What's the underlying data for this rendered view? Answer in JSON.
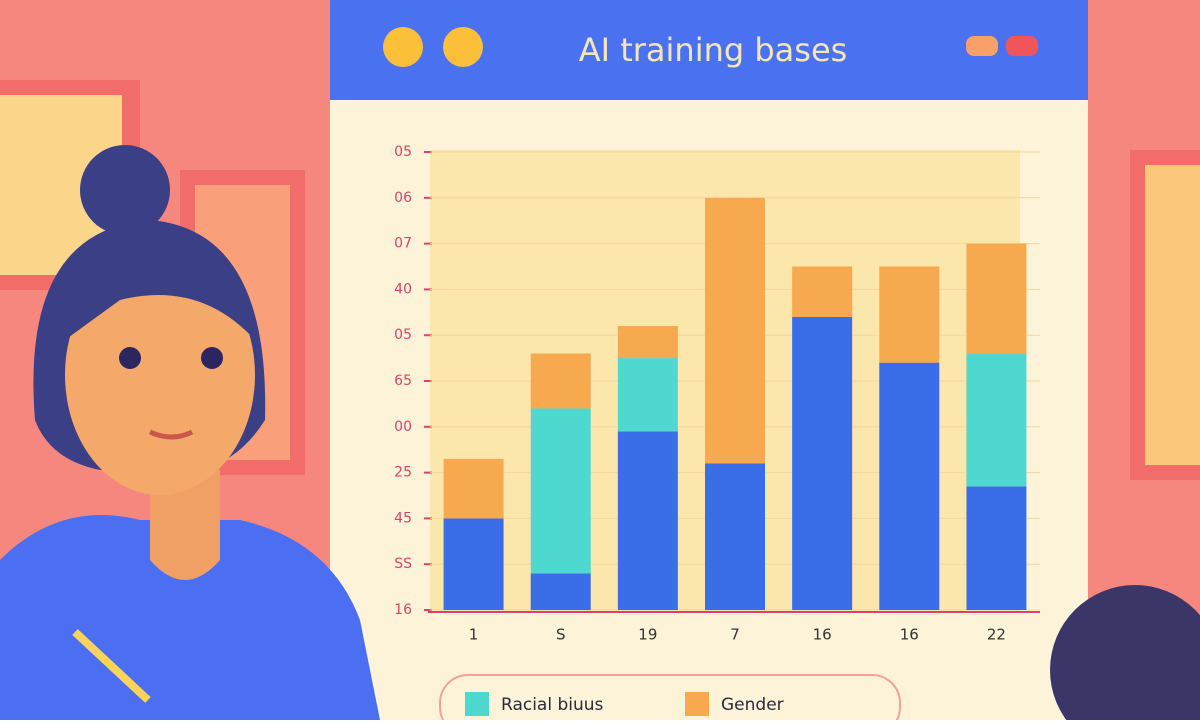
{
  "chart_data": {
    "type": "bar",
    "stacked": true,
    "title": "AI training bases",
    "categories": [
      "1",
      "S",
      "19",
      "7",
      "16",
      "16",
      "22"
    ],
    "series": [
      {
        "color": "#3a6ee8",
        "values": [
          2.0,
          0.8,
          3.9,
          3.2,
          6.4,
          5.4,
          2.7
        ]
      },
      {
        "name": "Racial biuus",
        "color": "#4fd8d0",
        "values": [
          0,
          3.6,
          1.6,
          0,
          0,
          0,
          2.9
        ]
      },
      {
        "name": "Gender",
        "color": "#f7a94f",
        "values": [
          1.3,
          1.2,
          0.7,
          5.8,
          1.1,
          2.1,
          2.4
        ]
      }
    ],
    "ylim": [
      0,
      10
    ],
    "yticks": [
      {
        "value": 0,
        "label": "16"
      },
      {
        "value": 1,
        "label": "SS"
      },
      {
        "value": 2,
        "label": "45"
      },
      {
        "value": 3,
        "label": "25"
      },
      {
        "value": 4,
        "label": "00"
      },
      {
        "value": 5,
        "label": "65"
      },
      {
        "value": 6,
        "label": "05"
      },
      {
        "value": 7,
        "label": "40"
      },
      {
        "value": 8,
        "label": "07"
      },
      {
        "value": 9,
        "label": "06"
      },
      {
        "value": 10,
        "label": "05"
      }
    ],
    "grid": true
  }
}
